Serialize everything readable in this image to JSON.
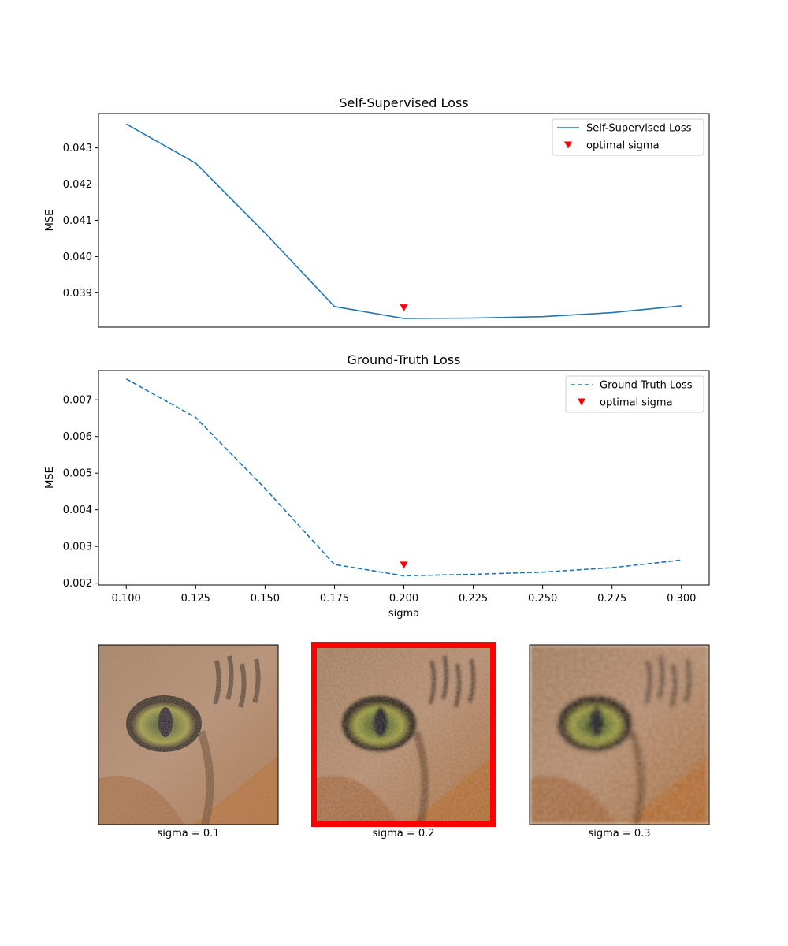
{
  "chart_data": [
    {
      "type": "line",
      "title": "Self-Supervised Loss",
      "xlabel": "",
      "ylabel": "MSE",
      "x": [
        0.1,
        0.125,
        0.15,
        0.175,
        0.2,
        0.225,
        0.25,
        0.275,
        0.3
      ],
      "xlim": [
        0.09,
        0.31
      ],
      "ylim": [
        0.03805,
        0.04395
      ],
      "yticks": [
        "0.039",
        "0.040",
        "0.041",
        "0.042",
        "0.043"
      ],
      "show_xticks": false,
      "grid": false,
      "legend_position": "top-right",
      "series": [
        {
          "name": "Self-Supervised Loss",
          "style": "solid",
          "color": "#1f77b4",
          "values": [
            0.04366,
            0.04258,
            0.04065,
            0.03862,
            0.03829,
            0.0383,
            0.03834,
            0.03845,
            0.03864
          ]
        }
      ],
      "markers": {
        "name": "optimal sigma",
        "color": "#ff0000",
        "shape": "triangle-down",
        "points": [
          {
            "x": 0.2,
            "y": 0.03858
          }
        ]
      }
    },
    {
      "type": "line",
      "title": "Ground-Truth Loss",
      "xlabel": "sigma",
      "ylabel": "MSE",
      "x": [
        0.1,
        0.125,
        0.15,
        0.175,
        0.2,
        0.225,
        0.25,
        0.275,
        0.3
      ],
      "xlim": [
        0.09,
        0.31
      ],
      "ylim": [
        0.00195,
        0.0078
      ],
      "yticks": [
        "0.002",
        "0.003",
        "0.004",
        "0.005",
        "0.006",
        "0.007"
      ],
      "xticks": [
        "0.100",
        "0.125",
        "0.150",
        "0.175",
        "0.200",
        "0.225",
        "0.250",
        "0.275",
        "0.300"
      ],
      "show_xticks": true,
      "grid": false,
      "legend_position": "top-right",
      "series": [
        {
          "name": "Ground Truth Loss",
          "style": "dashed",
          "color": "#1f77b4",
          "values": [
            0.00757,
            0.00652,
            0.00458,
            0.00251,
            0.0022,
            0.00224,
            0.0023,
            0.00242,
            0.00263
          ]
        }
      ],
      "markers": {
        "name": "optimal sigma",
        "color": "#ff0000",
        "shape": "triangle-down",
        "points": [
          {
            "x": 0.2,
            "y": 0.00249
          }
        ]
      }
    }
  ],
  "thumbnails": [
    {
      "caption": "sigma = 0.1",
      "selected": false,
      "noise": 0.1
    },
    {
      "caption": "sigma = 0.2",
      "selected": true,
      "noise": 0.2
    },
    {
      "caption": "sigma = 0.3",
      "selected": false,
      "noise": 0.3
    }
  ],
  "colors": {
    "line": "#1f77b4",
    "marker": "#ff0000",
    "highlight": "#ff0000"
  }
}
